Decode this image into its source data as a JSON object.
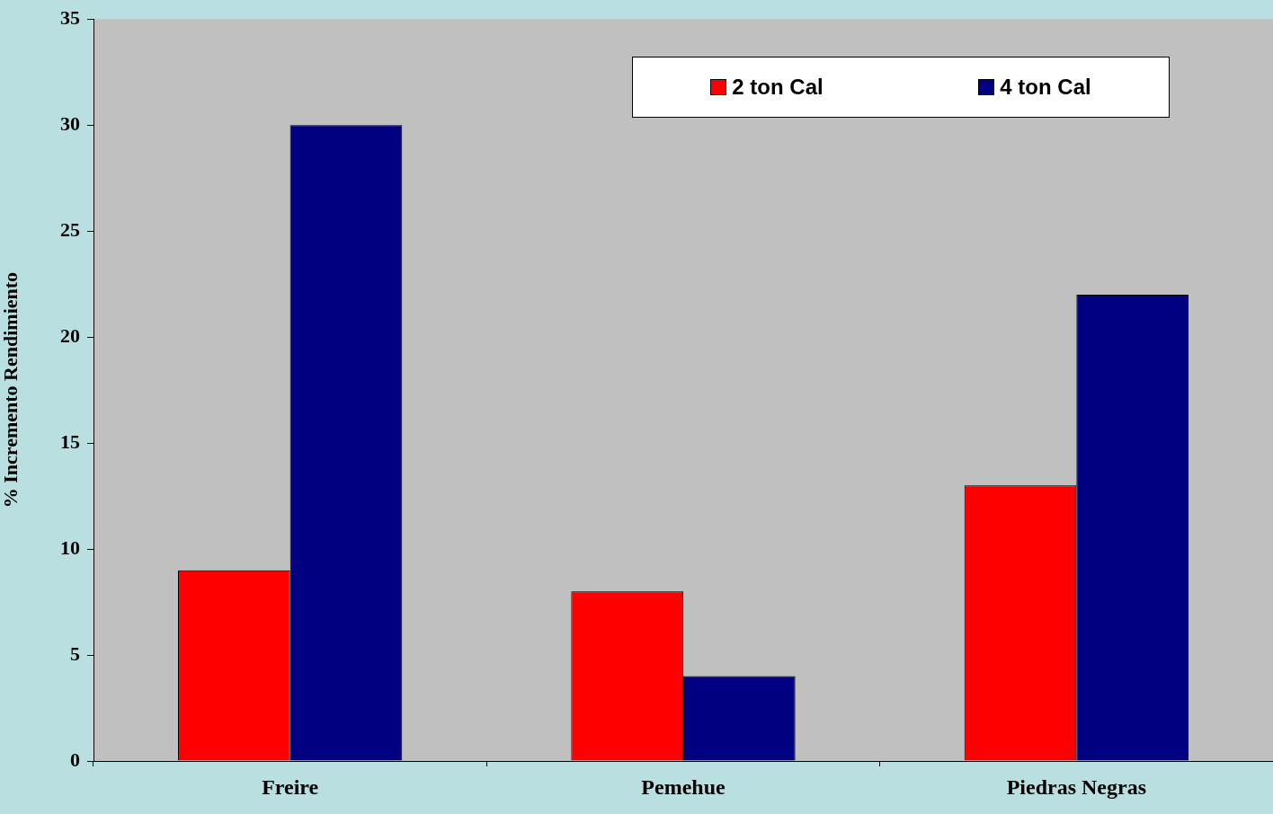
{
  "chart_data": {
    "type": "bar",
    "ylabel": "% Incremento Rendimiento",
    "categories": [
      "Freire",
      "Pemehue",
      "Piedras Negras"
    ],
    "series": [
      {
        "name": "2 ton Cal",
        "color": "#ff0000",
        "values": [
          9,
          8,
          13
        ]
      },
      {
        "name": "4 ton Cal",
        "color": "#000080",
        "values": [
          30,
          4,
          22
        ]
      }
    ],
    "ylim": [
      0,
      35
    ],
    "yticks": [
      0,
      5,
      10,
      15,
      20,
      25,
      30,
      35
    ],
    "grid": false,
    "legend": "top right"
  }
}
